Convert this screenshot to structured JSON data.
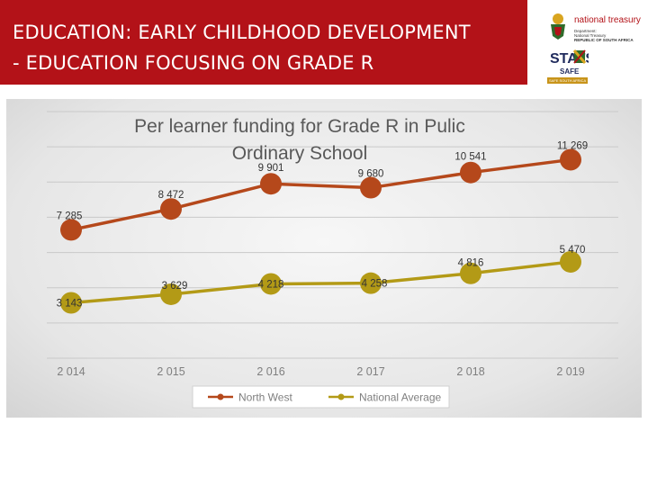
{
  "header": {
    "title_line1": "EDUCATION: EARLY CHILDHOOD DEVELOPMENT",
    "title_line2": "- EDUCATION FOCUSING ON GRADE R"
  },
  "logos": {
    "treasury_name": "national treasury",
    "treasury_sub1": "Department:",
    "treasury_sub2": "National Treasury",
    "treasury_sub3": "REPUBLIC OF SOUTH AFRICA",
    "stats_text": "STATS",
    "safe_text": "SAFE",
    "safe_badge": "SAFE SOUTH AFRICA",
    "colors": {
      "accent": "#b31218",
      "gold": "#c8941a"
    }
  },
  "chart_data": {
    "type": "line",
    "title_line1": "Per learner funding for Grade R in Pulic",
    "title_line2": "Ordinary School",
    "categories": [
      "2 014",
      "2 015",
      "2 016",
      "2 017",
      "2 018",
      "2 019"
    ],
    "series": [
      {
        "name": "North West",
        "values": [
          7285,
          8472,
          9901,
          9680,
          10541,
          11269
        ],
        "labels": [
          "7 285",
          "8 472",
          "9 901",
          "9 680",
          "10 541",
          "11 269"
        ],
        "color": "#b5481b"
      },
      {
        "name": "National Average",
        "values": [
          3143,
          3629,
          4218,
          4258,
          4816,
          5470
        ],
        "labels": [
          "3 143",
          "3 629",
          "4 218",
          "4 258",
          "4 816",
          "5 470"
        ],
        "color": "#b39a16"
      }
    ],
    "ylim": [
      0,
      14000
    ],
    "grid": true,
    "legend_position": "bottom"
  }
}
